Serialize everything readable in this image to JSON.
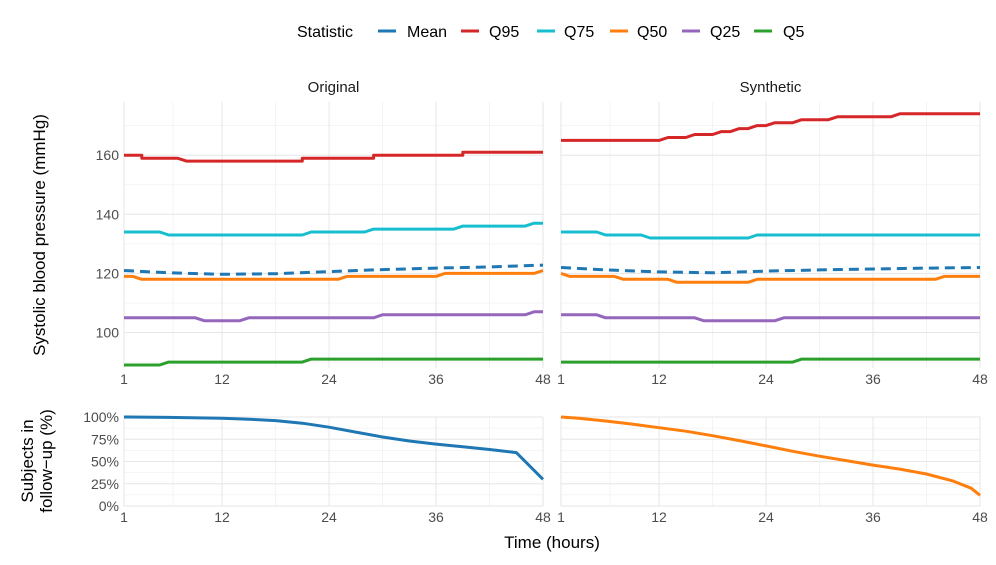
{
  "legend": {
    "title": "Statistic",
    "items": [
      {
        "name": "Mean",
        "color": "#1f77b4",
        "dashed": true
      },
      {
        "name": "Q95",
        "color": "#d62728",
        "dashed": false
      },
      {
        "name": "Q75",
        "color": "#17becf",
        "dashed": false
      },
      {
        "name": "Q50",
        "color": "#ff7f0e",
        "dashed": false
      },
      {
        "name": "Q25",
        "color": "#9467bd",
        "dashed": false
      },
      {
        "name": "Q5",
        "color": "#2ca02c",
        "dashed": false
      }
    ]
  },
  "facets": [
    "Original",
    "Synthetic"
  ],
  "axes": {
    "x_title": "Time (hours)",
    "y_top_title": "Systolic blood pressure (mmHg)",
    "y_bottom_title_line1": "Subjects in",
    "y_bottom_title_line2": "follow−up (%)"
  },
  "chart_data": [
    {
      "type": "line",
      "panel": "top",
      "facet": "Original",
      "xlabel": "Time (hours)",
      "ylabel": "Systolic blood pressure (mmHg)",
      "xlim": [
        1,
        48
      ],
      "ylim": [
        88,
        178
      ],
      "xticks": [
        1,
        12,
        24,
        36,
        48
      ],
      "yticks": [
        100,
        120,
        140,
        160
      ],
      "series": [
        {
          "name": "Q95",
          "color": "#d62728",
          "dashed": false,
          "x": [
            1,
            3,
            3,
            7,
            8,
            21,
            21,
            29,
            29,
            39,
            39,
            48
          ],
          "y": [
            160,
            160,
            159,
            159,
            158,
            158,
            159,
            159,
            160,
            160,
            161,
            161
          ]
        },
        {
          "name": "Q75",
          "color": "#17becf",
          "dashed": false,
          "x": [
            1,
            5,
            6,
            21,
            22,
            28,
            29,
            38,
            39,
            46,
            47,
            48
          ],
          "y": [
            134,
            134,
            133,
            133,
            134,
            134,
            135,
            135,
            136,
            136,
            137,
            137
          ]
        },
        {
          "name": "Mean",
          "color": "#1f77b4",
          "dashed": true,
          "x": [
            1,
            6,
            12,
            18,
            24,
            30,
            36,
            42,
            48
          ],
          "y": [
            121,
            120.2,
            119.7,
            119.9,
            120.6,
            121.3,
            121.8,
            122.2,
            122.8
          ]
        },
        {
          "name": "Q50",
          "color": "#ff7f0e",
          "dashed": false,
          "x": [
            1,
            2,
            3,
            25,
            26,
            36,
            37,
            47,
            48
          ],
          "y": [
            119,
            119,
            118,
            118,
            119,
            119,
            120,
            120,
            121
          ]
        },
        {
          "name": "Q25",
          "color": "#9467bd",
          "dashed": false,
          "x": [
            1,
            9,
            10,
            14,
            15,
            29,
            30,
            46,
            47,
            48
          ],
          "y": [
            105,
            105,
            104,
            104,
            105,
            105,
            106,
            106,
            107,
            107
          ]
        },
        {
          "name": "Q5",
          "color": "#2ca02c",
          "dashed": false,
          "x": [
            1,
            5,
            6,
            21,
            22,
            48
          ],
          "y": [
            89,
            89,
            90,
            90,
            91,
            91
          ]
        }
      ]
    },
    {
      "type": "line",
      "panel": "top",
      "facet": "Synthetic",
      "xlabel": "Time (hours)",
      "ylabel": "Systolic blood pressure (mmHg)",
      "xlim": [
        1,
        48
      ],
      "ylim": [
        88,
        178
      ],
      "xticks": [
        1,
        12,
        24,
        36,
        48
      ],
      "yticks": [
        100,
        120,
        140,
        160
      ],
      "series": [
        {
          "name": "Q95",
          "color": "#d62728",
          "dashed": false,
          "x": [
            1,
            12,
            13,
            14,
            15,
            16,
            17,
            18,
            19,
            20,
            21,
            22,
            23,
            24,
            25,
            26,
            27,
            28,
            29,
            30,
            31,
            32,
            33,
            34,
            35,
            36,
            37,
            38,
            39,
            40,
            48
          ],
          "y": [
            165,
            165,
            166,
            166,
            166,
            167,
            167,
            167,
            168,
            168,
            169,
            169,
            170,
            170,
            171,
            171,
            171,
            172,
            172,
            172,
            172,
            173,
            173,
            173,
            173,
            173,
            173,
            173,
            174,
            174,
            174
          ]
        },
        {
          "name": "Q75",
          "color": "#17becf",
          "dashed": false,
          "x": [
            1,
            5,
            6,
            10,
            11,
            22,
            23,
            48
          ],
          "y": [
            134,
            134,
            133,
            133,
            132,
            132,
            133,
            133
          ]
        },
        {
          "name": "Mean",
          "color": "#1f77b4",
          "dashed": true,
          "x": [
            1,
            6,
            12,
            18,
            24,
            30,
            36,
            42,
            48
          ],
          "y": [
            122,
            121.2,
            120.5,
            120.2,
            120.8,
            121.2,
            121.5,
            121.8,
            122
          ]
        },
        {
          "name": "Q50",
          "color": "#ff7f0e",
          "dashed": false,
          "x": [
            1,
            2,
            3,
            7,
            8,
            13,
            14,
            22,
            23,
            43,
            44,
            48
          ],
          "y": [
            120,
            119,
            119,
            119,
            118,
            118,
            117,
            117,
            118,
            118,
            119,
            119
          ]
        },
        {
          "name": "Q25",
          "color": "#9467bd",
          "dashed": false,
          "x": [
            1,
            5,
            6,
            16,
            17,
            25,
            26,
            48
          ],
          "y": [
            106,
            106,
            105,
            105,
            104,
            104,
            105,
            105
          ]
        },
        {
          "name": "Q5",
          "color": "#2ca02c",
          "dashed": false,
          "x": [
            1,
            27,
            28,
            48
          ],
          "y": [
            90,
            90,
            91,
            91
          ]
        }
      ]
    },
    {
      "type": "line",
      "panel": "bottom",
      "facet": "Original",
      "xlabel": "Time (hours)",
      "ylabel": "Subjects in follow−up (%)",
      "xlim": [
        1,
        48
      ],
      "ylim": [
        0,
        100
      ],
      "xticks": [
        1,
        12,
        24,
        36,
        48
      ],
      "yticks": [
        0,
        25,
        50,
        75,
        100
      ],
      "ytick_labels": [
        "0%",
        "25%",
        "50%",
        "75%",
        "100%"
      ],
      "series": [
        {
          "name": "Original",
          "color": "#1f77b4",
          "dashed": false,
          "x": [
            1,
            6,
            12,
            15,
            18,
            21,
            24,
            27,
            30,
            33,
            36,
            39,
            42,
            45,
            48
          ],
          "y": [
            100,
            99.5,
            98.5,
            97.5,
            96,
            93,
            88.5,
            83,
            77.5,
            73,
            69.5,
            66.5,
            63.5,
            60,
            30
          ]
        }
      ]
    },
    {
      "type": "line",
      "panel": "bottom",
      "facet": "Synthetic",
      "xlabel": "Time (hours)",
      "ylabel": "Subjects in follow−up (%)",
      "xlim": [
        1,
        48
      ],
      "ylim": [
        0,
        100
      ],
      "xticks": [
        1,
        12,
        24,
        36,
        48
      ],
      "yticks": [
        0,
        25,
        50,
        75,
        100
      ],
      "ytick_labels": [
        "0%",
        "25%",
        "50%",
        "75%",
        "100%"
      ],
      "series": [
        {
          "name": "Synthetic",
          "color": "#ff7f0e",
          "dashed": false,
          "x": [
            1,
            3,
            6,
            9,
            12,
            15,
            18,
            21,
            24,
            27,
            30,
            33,
            36,
            39,
            42,
            45,
            47,
            48
          ],
          "y": [
            100,
            98.5,
            95.5,
            92,
            88,
            84,
            79,
            73.5,
            67.5,
            61.5,
            56,
            51,
            46,
            41.5,
            36,
            28,
            20,
            12
          ]
        }
      ]
    }
  ]
}
